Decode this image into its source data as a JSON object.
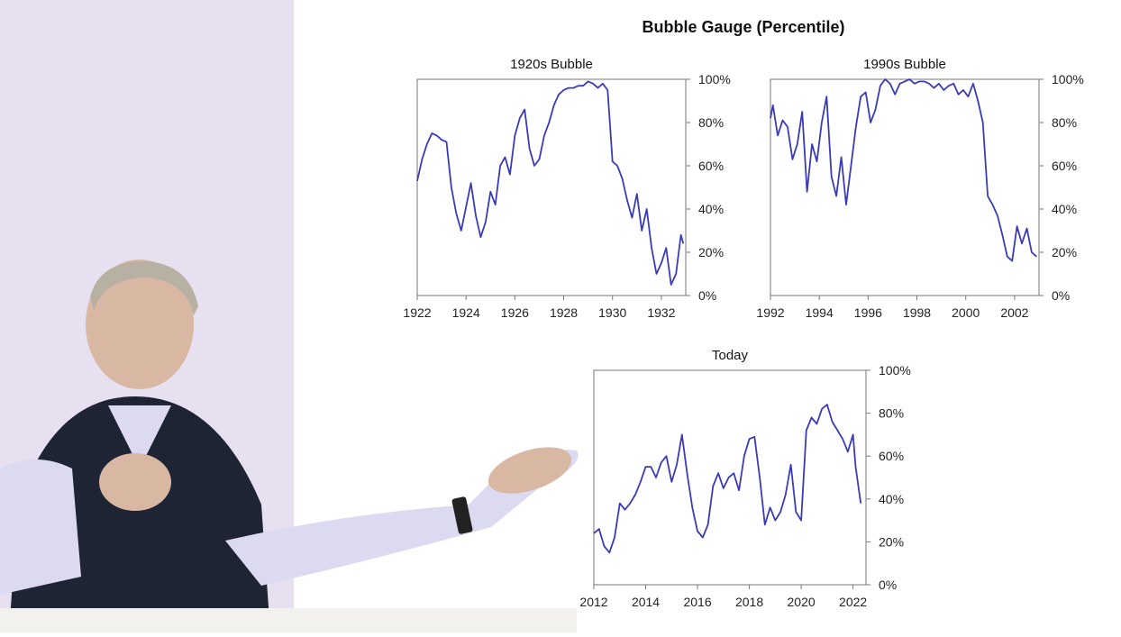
{
  "title": "Bubble Gauge (Percentile)",
  "colors": {
    "line": "#3b3bb8",
    "axis": "#777777",
    "photo_bg": "#e6e0f0"
  },
  "chart_data": [
    {
      "type": "line",
      "title": "1920s Bubble",
      "xlim": [
        1922,
        1933
      ],
      "ylim": [
        0,
        100
      ],
      "x_ticks": [
        "1922",
        "1924",
        "1926",
        "1928",
        "1930",
        "1932"
      ],
      "y_ticks": [
        "0%",
        "20%",
        "40%",
        "60%",
        "80%",
        "100%"
      ],
      "grid": false,
      "x": [
        1922.0,
        1922.2,
        1922.4,
        1922.6,
        1922.8,
        1923.0,
        1923.2,
        1923.4,
        1923.6,
        1923.8,
        1924.0,
        1924.2,
        1924.4,
        1924.6,
        1924.8,
        1925.0,
        1925.2,
        1925.4,
        1925.6,
        1925.8,
        1926.0,
        1926.2,
        1926.4,
        1926.6,
        1926.8,
        1927.0,
        1927.2,
        1927.4,
        1927.6,
        1927.8,
        1928.0,
        1928.2,
        1928.4,
        1928.6,
        1928.8,
        1929.0,
        1929.2,
        1929.4,
        1929.6,
        1929.8,
        1930.0,
        1930.2,
        1930.4,
        1930.6,
        1930.8,
        1931.0,
        1931.2,
        1931.4,
        1931.6,
        1931.8,
        1932.0,
        1932.2,
        1932.4,
        1932.6,
        1932.8,
        1932.9
      ],
      "y": [
        53,
        63,
        70,
        75,
        74,
        72,
        71,
        50,
        38,
        30,
        41,
        52,
        37,
        27,
        34,
        48,
        42,
        60,
        64,
        56,
        74,
        82,
        86,
        68,
        60,
        63,
        74,
        80,
        88,
        93,
        95,
        96,
        96,
        97,
        97,
        99,
        98,
        96,
        98,
        95,
        62,
        60,
        54,
        44,
        36,
        47,
        30,
        40,
        22,
        10,
        15,
        22,
        5,
        10,
        28,
        24
      ]
    },
    {
      "type": "line",
      "title": "1990s Bubble",
      "xlim": [
        1992,
        2003
      ],
      "ylim": [
        0,
        100
      ],
      "x_ticks": [
        "1992",
        "1994",
        "1996",
        "1998",
        "2000",
        "2002"
      ],
      "y_ticks": [
        "0%",
        "20%",
        "40%",
        "60%",
        "80%",
        "100%"
      ],
      "grid": false,
      "x": [
        1992.0,
        1992.1,
        1992.3,
        1992.5,
        1992.7,
        1992.9,
        1993.1,
        1993.3,
        1993.5,
        1993.7,
        1993.9,
        1994.1,
        1994.3,
        1994.5,
        1994.7,
        1994.9,
        1995.1,
        1995.3,
        1995.5,
        1995.7,
        1995.9,
        1996.1,
        1996.3,
        1996.5,
        1996.7,
        1996.9,
        1997.1,
        1997.3,
        1997.5,
        1997.7,
        1997.9,
        1998.1,
        1998.3,
        1998.5,
        1998.7,
        1998.9,
        1999.1,
        1999.3,
        1999.5,
        1999.7,
        1999.9,
        2000.1,
        2000.3,
        2000.5,
        2000.7,
        2000.9,
        2001.1,
        2001.3,
        2001.5,
        2001.7,
        2001.9,
        2002.1,
        2002.3,
        2002.5,
        2002.7,
        2002.9
      ],
      "y": [
        82,
        88,
        74,
        81,
        78,
        63,
        70,
        85,
        48,
        70,
        62,
        80,
        92,
        55,
        46,
        64,
        42,
        60,
        78,
        92,
        94,
        80,
        86,
        97,
        100,
        98,
        93,
        98,
        99,
        100,
        98,
        99,
        99,
        98,
        96,
        98,
        95,
        97,
        98,
        93,
        95,
        92,
        98,
        90,
        80,
        46,
        42,
        37,
        28,
        18,
        16,
        32,
        24,
        31,
        20,
        18
      ]
    },
    {
      "type": "line",
      "title": "Today",
      "xlim": [
        2012,
        2022.5
      ],
      "ylim": [
        0,
        100
      ],
      "x_ticks": [
        "2012",
        "2014",
        "2016",
        "2018",
        "2020",
        "2022"
      ],
      "y_ticks": [
        "0%",
        "20%",
        "40%",
        "60%",
        "80%",
        "100%"
      ],
      "grid": false,
      "x": [
        2012.0,
        2012.2,
        2012.4,
        2012.6,
        2012.8,
        2013.0,
        2013.2,
        2013.4,
        2013.6,
        2013.8,
        2014.0,
        2014.2,
        2014.4,
        2014.6,
        2014.8,
        2015.0,
        2015.2,
        2015.4,
        2015.6,
        2015.8,
        2016.0,
        2016.2,
        2016.4,
        2016.6,
        2016.8,
        2017.0,
        2017.2,
        2017.4,
        2017.6,
        2017.8,
        2018.0,
        2018.2,
        2018.4,
        2018.6,
        2018.8,
        2019.0,
        2019.2,
        2019.4,
        2019.6,
        2019.8,
        2020.0,
        2020.2,
        2020.4,
        2020.6,
        2020.8,
        2021.0,
        2021.2,
        2021.4,
        2021.6,
        2021.8,
        2022.0,
        2022.1,
        2022.3
      ],
      "y": [
        24,
        26,
        18,
        15,
        22,
        38,
        35,
        38,
        42,
        48,
        55,
        55,
        50,
        57,
        60,
        48,
        56,
        70,
        52,
        36,
        25,
        22,
        28,
        46,
        52,
        45,
        50,
        52,
        44,
        60,
        68,
        69,
        50,
        28,
        36,
        30,
        34,
        42,
        56,
        34,
        30,
        72,
        78,
        75,
        82,
        84,
        76,
        72,
        68,
        62,
        70,
        55,
        38
      ]
    }
  ]
}
